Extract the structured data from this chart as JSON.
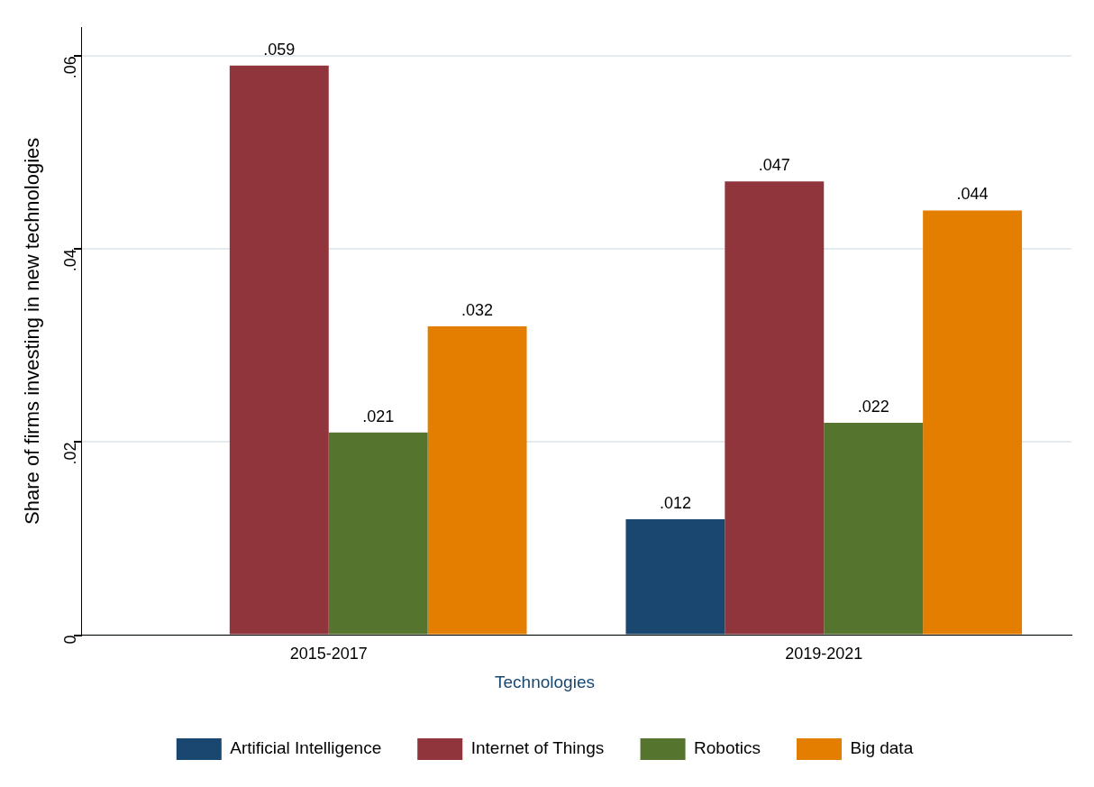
{
  "chart_data": {
    "type": "bar",
    "ylabel": "Share of firms investing in new technologies",
    "legend_title": "Technologies",
    "categories": [
      "2015-2017",
      "2019-2021"
    ],
    "series": [
      {
        "name": "Artificial Intelligence",
        "color": "#1a476f",
        "values": [
          null,
          0.012
        ],
        "value_labels": [
          null,
          ".012"
        ]
      },
      {
        "name": "Internet of Things",
        "color": "#90353b",
        "values": [
          0.059,
          0.047
        ],
        "value_labels": [
          ".059",
          ".047"
        ]
      },
      {
        "name": "Robotics",
        "color": "#55752f",
        "values": [
          0.021,
          0.022
        ],
        "value_labels": [
          ".021",
          ".022"
        ]
      },
      {
        "name": "Big data",
        "color": "#e37e00",
        "values": [
          0.032,
          0.044
        ],
        "value_labels": [
          ".032",
          ".044"
        ]
      }
    ],
    "ylim": [
      0,
      0.063
    ],
    "yticks": [
      0,
      {
        "value": 0.02,
        "label": ".02"
      },
      {
        "value": 0.04,
        "label": ".04"
      },
      {
        "value": 0.06,
        "label": ".06"
      }
    ],
    "grid": "y",
    "legend": "bottom"
  }
}
